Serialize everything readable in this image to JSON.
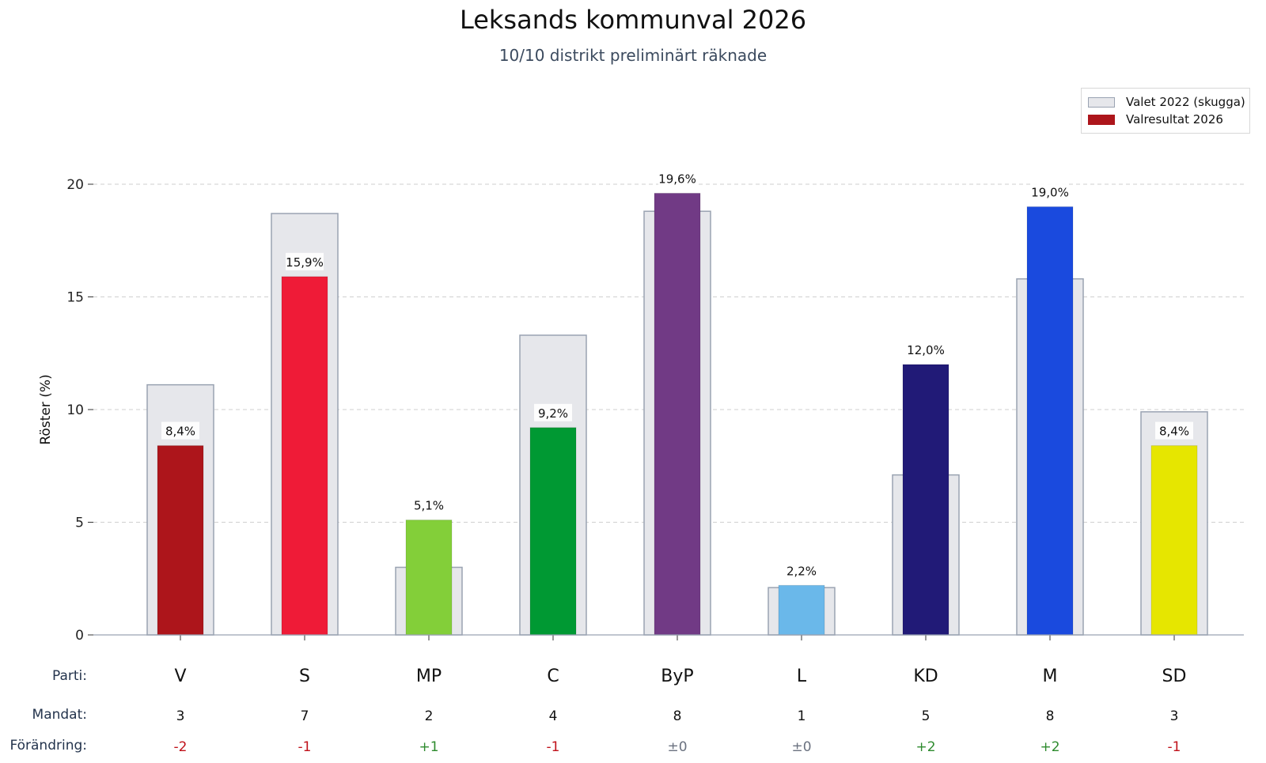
{
  "title": "Leksands kommunval 2026",
  "subtitle": "10/10 distrikt preliminärt räknade",
  "legend": {
    "items": [
      "Valet 2022 (skugga)",
      "Valresultat 2026"
    ]
  },
  "row_labels": {
    "party": "Parti:",
    "seats": "Mandat:",
    "change": "Förändring:"
  },
  "colors": {
    "shadow_fill": "#e6e7eb",
    "shadow_stroke": "#9aa3b2",
    "positive": "#2e8b2e",
    "negative": "#c0111a",
    "neutral": "#6b7280"
  },
  "chart_data": {
    "type": "bar",
    "title": "Leksands kommunval 2026",
    "subtitle": "10/10 distrikt preliminärt räknade",
    "xlabel": "",
    "ylabel": "Röster (%)",
    "ylim": [
      0,
      20
    ],
    "yticks": [
      0,
      5,
      10,
      15,
      20
    ],
    "grid": true,
    "legend_position": "top-right",
    "categories": [
      "V",
      "S",
      "MP",
      "C",
      "ByP",
      "L",
      "KD",
      "M",
      "SD"
    ],
    "series": [
      {
        "name": "Valet 2022 (skugga)",
        "values": [
          11.1,
          18.7,
          3.0,
          13.3,
          18.8,
          2.1,
          7.1,
          15.8,
          9.9
        ]
      },
      {
        "name": "Valresultat 2026",
        "values": [
          8.4,
          15.9,
          5.1,
          9.2,
          19.6,
          2.2,
          12.0,
          19.0,
          8.4
        ],
        "labels": [
          "8,4%",
          "15,9%",
          "5,1%",
          "9,2%",
          "19,6%",
          "2,2%",
          "12,0%",
          "19,0%",
          "8,4%"
        ],
        "colors": [
          "#ad151b",
          "#ef1b37",
          "#83cf39",
          "#009933",
          "#713a85",
          "#6ab8ea",
          "#211a77",
          "#1a4ade",
          "#e6e600"
        ]
      }
    ],
    "seats": [
      "3",
      "7",
      "2",
      "4",
      "8",
      "1",
      "5",
      "8",
      "3"
    ],
    "change": [
      "-2",
      "-1",
      "+1",
      "-1",
      "±0",
      "±0",
      "+2",
      "+2",
      "-1"
    ]
  }
}
